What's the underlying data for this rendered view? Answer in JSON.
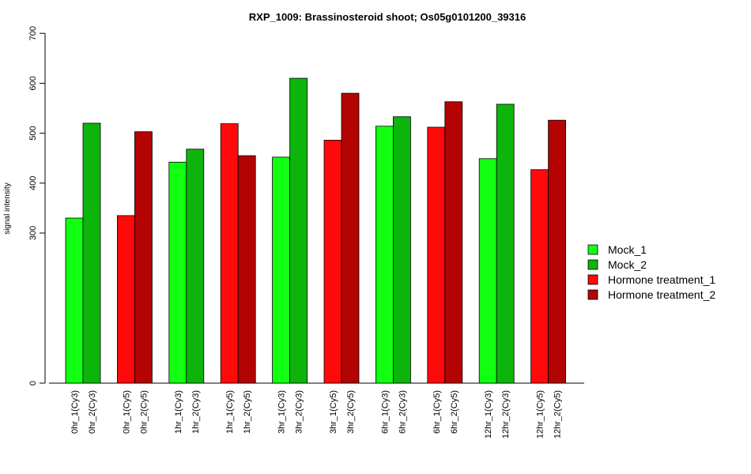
{
  "chart_data": {
    "type": "bar",
    "title": "RXP_1009: Brassinosteroid shoot; Os05g0101200_39316",
    "ylabel": "signal intensity",
    "xlabel": "",
    "yticks": [
      0,
      300,
      400,
      500,
      600,
      700
    ],
    "ylim": [
      0,
      700
    ],
    "y_axis_break": "0-300 region compressed",
    "legend_position": "right",
    "categories": [
      "0hr_1(Cy3)",
      "0hr_2(Cy3)",
      "0hr_1(Cy5)",
      "0hr_2(Cy5)",
      "1hr_1(Cy3)",
      "1hr_2(Cy3)",
      "1hr_1(Cy5)",
      "1hr_2(Cy5)",
      "3hr_1(Cy3)",
      "3hr_2(Cy3)",
      "3hr_1(Cy5)",
      "3hr_2(Cy5)",
      "6hr_1(Cy3)",
      "6hr_2(Cy3)",
      "6hr_1(Cy5)",
      "6hr_2(Cy5)",
      "12hr_1(Cy3)",
      "12hr_2(Cy3)",
      "12hr_1(Cy5)",
      "12hr_2(Cy5)"
    ],
    "values": [
      330,
      520,
      335,
      503,
      442,
      468,
      519,
      455,
      452,
      610,
      486,
      580,
      514,
      533,
      512,
      563,
      449,
      558,
      427,
      526
    ],
    "series_index": [
      0,
      1,
      2,
      3,
      0,
      1,
      2,
      3,
      0,
      1,
      2,
      3,
      0,
      1,
      2,
      3,
      0,
      1,
      2,
      3
    ],
    "series": [
      {
        "name": "Mock_1",
        "color": "#11ff11"
      },
      {
        "name": "Mock_2",
        "color": "#0cb40c"
      },
      {
        "name": "Hormone treatment_1",
        "color": "#ff0a0a"
      },
      {
        "name": "Hormone treatment_2",
        "color": "#b40303"
      }
    ]
  }
}
